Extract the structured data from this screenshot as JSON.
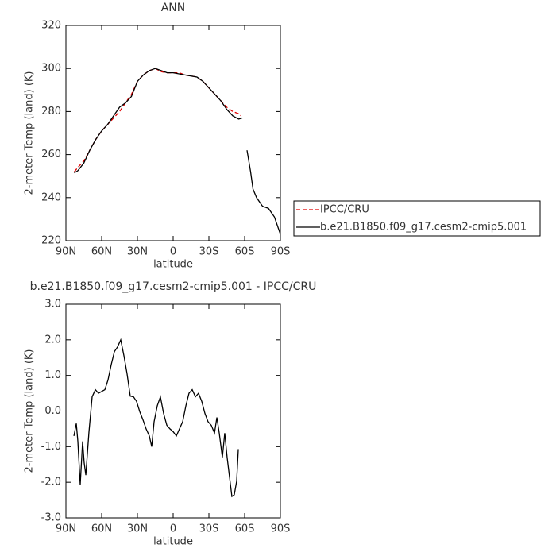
{
  "chart_data": [
    {
      "type": "line",
      "title": "ANN",
      "xlabel": "latitude",
      "ylabel": "2-meter Temp (land) (K)",
      "xlim": [
        90,
        -90
      ],
      "xticks": [
        {
          "value": 90,
          "label": "90N"
        },
        {
          "value": 60,
          "label": "60N"
        },
        {
          "value": 30,
          "label": "30N"
        },
        0,
        {
          "value": -30,
          "label": "30S"
        },
        {
          "value": -60,
          "label": "60S"
        },
        {
          "value": -90,
          "label": "90S"
        }
      ],
      "ylim": [
        220,
        320
      ],
      "yticks": [
        220,
        240,
        260,
        280,
        300,
        320
      ],
      "legend": "right",
      "series": [
        {
          "name": "IPCC/CRU",
          "color": "#e00000",
          "dash": "dashed",
          "x": [
            83,
            80,
            75,
            70,
            65,
            60,
            55,
            50,
            45,
            40,
            35,
            30,
            25,
            20,
            15,
            10,
            5,
            0,
            -5,
            -10,
            -15,
            -20,
            -25,
            -30,
            -35,
            -40,
            -45,
            -50,
            -55,
            -57
          ],
          "values": [
            252,
            254,
            257,
            262,
            267,
            271,
            274,
            277,
            280,
            284,
            288,
            294,
            297,
            299,
            300,
            298.5,
            298,
            298,
            298,
            297,
            296.5,
            296,
            294,
            291,
            288,
            285,
            282,
            280,
            279,
            278
          ]
        },
        {
          "name": "b.e21.B1850.f09_g17.cesm2-cmip5.001",
          "color": "#000000",
          "dash": "solid",
          "x": [
            83,
            80,
            75,
            70,
            65,
            60,
            55,
            50,
            45,
            40,
            35,
            30,
            25,
            20,
            15,
            10,
            5,
            0,
            -5,
            -10,
            -15,
            -20,
            -25,
            -30,
            -35,
            -40,
            -45,
            -50,
            -55,
            -58,
            -60,
            -62,
            -65,
            -67,
            -70,
            -75,
            -80,
            -85,
            -90
          ],
          "values": [
            251.5,
            252.5,
            256,
            262,
            267,
            271,
            274,
            278,
            282,
            284,
            287,
            294,
            297,
            299,
            300,
            299,
            298,
            298,
            297.5,
            297,
            296.5,
            296,
            294,
            291,
            288,
            285,
            281,
            278,
            276.5,
            277,
            null,
            262,
            252,
            244,
            240,
            236,
            235,
            231,
            223
          ]
        }
      ]
    },
    {
      "type": "line",
      "title": "b.e21.B1850.f09_g17.cesm2-cmip5.001 - IPCC/CRU",
      "xlabel": "latitude",
      "ylabel": "2-meter Temp (land) (K)",
      "xlim": [
        90,
        -90
      ],
      "xticks": [
        {
          "value": 90,
          "label": "90N"
        },
        {
          "value": 60,
          "label": "60N"
        },
        {
          "value": 30,
          "label": "30N"
        },
        0,
        {
          "value": -30,
          "label": "30S"
        },
        {
          "value": -60,
          "label": "60S"
        },
        {
          "value": -90,
          "label": "90S"
        }
      ],
      "ylim": [
        -3,
        3
      ],
      "yticks": [
        {
          "value": -3,
          "label": "-3.0"
        },
        {
          "value": -2,
          "label": "-2.0"
        },
        {
          "value": -1,
          "label": "-1.0"
        },
        {
          "value": 0,
          "label": "0.0"
        },
        {
          "value": 1,
          "label": "1.0"
        },
        {
          "value": 2,
          "label": "2.0"
        },
        {
          "value": 3,
          "label": "3.0"
        }
      ],
      "series": [
        {
          "color": "#000000",
          "dash": "solid",
          "x": [
            83.3,
            81.3,
            80,
            78,
            76,
            74.7,
            73.3,
            70.7,
            68,
            65.3,
            62.7,
            60,
            57.3,
            54.7,
            52,
            49.3,
            46.7,
            44,
            41.3,
            38.7,
            36,
            33.3,
            30.7,
            28,
            25.3,
            22.7,
            20,
            18,
            16,
            13.3,
            10.7,
            8,
            5.3,
            2.7,
            0,
            -2.7,
            -5.3,
            -8,
            -10.7,
            -13.3,
            -16,
            -18.7,
            -21.3,
            -24,
            -26.7,
            -29.3,
            -32,
            -34.7,
            -36.7,
            -38.7,
            -41.3,
            -43.3,
            -45.3,
            -47.3,
            -49.3,
            -51.3,
            -53.3,
            -54.7
          ],
          "values": [
            -0.7,
            -0.35,
            -0.85,
            -2.07,
            -0.85,
            -1.45,
            -1.8,
            -0.6,
            0.4,
            0.6,
            0.5,
            0.55,
            0.6,
            0.87,
            1.3,
            1.67,
            1.8,
            2.0,
            1.55,
            1.05,
            0.42,
            0.4,
            0.27,
            -0.02,
            -0.25,
            -0.5,
            -0.7,
            -1.0,
            -0.3,
            0.15,
            0.4,
            -0.07,
            -0.4,
            -0.5,
            -0.58,
            -0.7,
            -0.5,
            -0.3,
            0.15,
            0.5,
            0.6,
            0.4,
            0.5,
            0.27,
            -0.07,
            -0.3,
            -0.4,
            -0.62,
            -0.18,
            -0.62,
            -1.3,
            -0.62,
            -1.3,
            -1.85,
            -2.4,
            -2.35,
            -1.97,
            -1.07
          ]
        }
      ]
    }
  ]
}
